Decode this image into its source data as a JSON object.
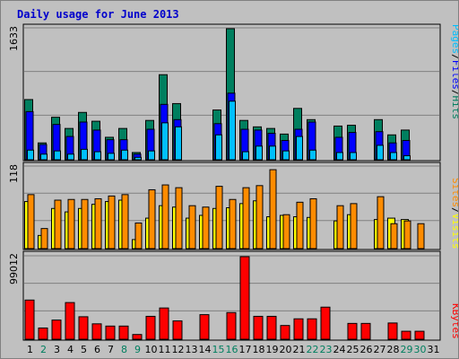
{
  "chart_title": "Daily usage for June 2013",
  "colors": {
    "hits": "#007f5f",
    "files": "#0000ff",
    "pages": "#00bfff",
    "visits": "#ffff00",
    "sites": "#ff8c00",
    "kbytes": "#ff0000",
    "weekday_tick": "#000000",
    "weekend_tick": "#007f5f",
    "frame_bg": "#c0c0c0"
  },
  "right_labels": {
    "top": [
      {
        "text": "Pages",
        "color": "#00bfff"
      },
      {
        "text": "/",
        "color": "#000000"
      },
      {
        "text": "Files",
        "color": "#0000ff"
      },
      {
        "text": "/",
        "color": "#000000"
      },
      {
        "text": "Hits",
        "color": "#007f5f"
      }
    ],
    "middle": [
      {
        "text": "Sites",
        "color": "#ff8c00"
      },
      {
        "text": "/",
        "color": "#000000"
      },
      {
        "text": "Visits",
        "color": "#ffff00"
      }
    ],
    "bottom": [
      {
        "text": "KBytes",
        "color": "#ff0000"
      }
    ]
  },
  "chart_data": [
    {
      "type": "bar",
      "panel": "top",
      "y_max_label": "1633",
      "ylim": [
        0,
        1633
      ],
      "grid": true,
      "categories": [
        "1",
        "2",
        "3",
        "4",
        "5",
        "6",
        "7",
        "8",
        "9",
        "10",
        "11",
        "12",
        "13",
        "14",
        "15",
        "16",
        "17",
        "18",
        "19",
        "20",
        "21",
        "22",
        "23",
        "24",
        "25",
        "26",
        "27",
        "28",
        "29",
        "30",
        "31"
      ],
      "series": [
        {
          "name": "Hits",
          "values": [
            750,
            210,
            530,
            390,
            590,
            480,
            280,
            390,
            90,
            490,
            1060,
            700,
            0,
            0,
            620,
            1633,
            490,
            410,
            390,
            320,
            640,
            500,
            0,
            420,
            430,
            0,
            500,
            310,
            370,
            0,
            0
          ]
        },
        {
          "name": "Files",
          "values": [
            600,
            190,
            440,
            290,
            470,
            370,
            250,
            250,
            70,
            380,
            690,
            500,
            0,
            0,
            450,
            830,
            380,
            370,
            330,
            240,
            380,
            470,
            0,
            280,
            340,
            0,
            350,
            210,
            240,
            0,
            0
          ]
        },
        {
          "name": "Pages",
          "values": [
            120,
            70,
            110,
            70,
            130,
            100,
            80,
            120,
            30,
            110,
            460,
            410,
            0,
            0,
            310,
            730,
            100,
            170,
            170,
            110,
            290,
            120,
            0,
            90,
            90,
            0,
            180,
            90,
            50,
            0,
            0
          ]
        }
      ]
    },
    {
      "type": "bar",
      "panel": "middle",
      "y_max_label": "118",
      "ylim": [
        0,
        118
      ],
      "grid": true,
      "categories": [
        "1",
        "2",
        "3",
        "4",
        "5",
        "6",
        "7",
        "8",
        "9",
        "10",
        "11",
        "12",
        "13",
        "14",
        "15",
        "16",
        "17",
        "18",
        "19",
        "20",
        "21",
        "22",
        "23",
        "24",
        "25",
        "26",
        "27",
        "28",
        "29",
        "30",
        "31"
      ],
      "series": [
        {
          "name": "Visits",
          "values": [
            68,
            19,
            58,
            53,
            58,
            64,
            68,
            70,
            13,
            44,
            62,
            60,
            44,
            48,
            58,
            59,
            65,
            69,
            46,
            48,
            46,
            45,
            0,
            40,
            49,
            0,
            42,
            44,
            42,
            0,
            0
          ]
        },
        {
          "name": "Sites",
          "values": [
            78,
            29,
            70,
            71,
            71,
            72,
            76,
            78,
            37,
            85,
            92,
            88,
            62,
            60,
            90,
            71,
            88,
            91,
            114,
            49,
            67,
            72,
            0,
            62,
            65,
            0,
            75,
            36,
            40,
            36,
            0
          ]
        }
      ]
    },
    {
      "type": "bar",
      "panel": "bottom",
      "y_max_label": "99012",
      "ylim": [
        0,
        99012
      ],
      "grid": true,
      "categories": [
        "1",
        "2",
        "3",
        "4",
        "5",
        "6",
        "7",
        "8",
        "9",
        "10",
        "11",
        "12",
        "13",
        "14",
        "15",
        "16",
        "17",
        "18",
        "19",
        "20",
        "21",
        "22",
        "23",
        "24",
        "25",
        "26",
        "27",
        "28",
        "29",
        "30",
        "31"
      ],
      "series": [
        {
          "name": "KBytes",
          "values": [
            47000,
            13500,
            23000,
            44000,
            27000,
            18500,
            15800,
            15800,
            5700,
            27500,
            37500,
            22000,
            0,
            29500,
            0,
            32000,
            99012,
            27500,
            27500,
            16500,
            24500,
            24500,
            38500,
            0,
            19000,
            19000,
            0,
            19500,
            9600,
            9600,
            0
          ]
        }
      ]
    }
  ],
  "x_ticks": [
    {
      "label": "1",
      "weekend": false
    },
    {
      "label": "2",
      "weekend": true
    },
    {
      "label": "3",
      "weekend": false
    },
    {
      "label": "4",
      "weekend": false
    },
    {
      "label": "5",
      "weekend": false
    },
    {
      "label": "6",
      "weekend": false
    },
    {
      "label": "7",
      "weekend": false
    },
    {
      "label": "8",
      "weekend": true
    },
    {
      "label": "9",
      "weekend": true
    },
    {
      "label": "10",
      "weekend": false
    },
    {
      "label": "11",
      "weekend": false
    },
    {
      "label": "12",
      "weekend": false
    },
    {
      "label": "13",
      "weekend": false
    },
    {
      "label": "14",
      "weekend": false
    },
    {
      "label": "15",
      "weekend": true
    },
    {
      "label": "16",
      "weekend": true
    },
    {
      "label": "17",
      "weekend": false
    },
    {
      "label": "18",
      "weekend": false
    },
    {
      "label": "19",
      "weekend": false
    },
    {
      "label": "20",
      "weekend": false
    },
    {
      "label": "21",
      "weekend": false
    },
    {
      "label": "22",
      "weekend": true
    },
    {
      "label": "23",
      "weekend": true
    },
    {
      "label": "24",
      "weekend": false
    },
    {
      "label": "25",
      "weekend": false
    },
    {
      "label": "26",
      "weekend": false
    },
    {
      "label": "27",
      "weekend": false
    },
    {
      "label": "28",
      "weekend": false
    },
    {
      "label": "29",
      "weekend": true
    },
    {
      "label": "30",
      "weekend": true
    },
    {
      "label": "31",
      "weekend": false
    }
  ]
}
